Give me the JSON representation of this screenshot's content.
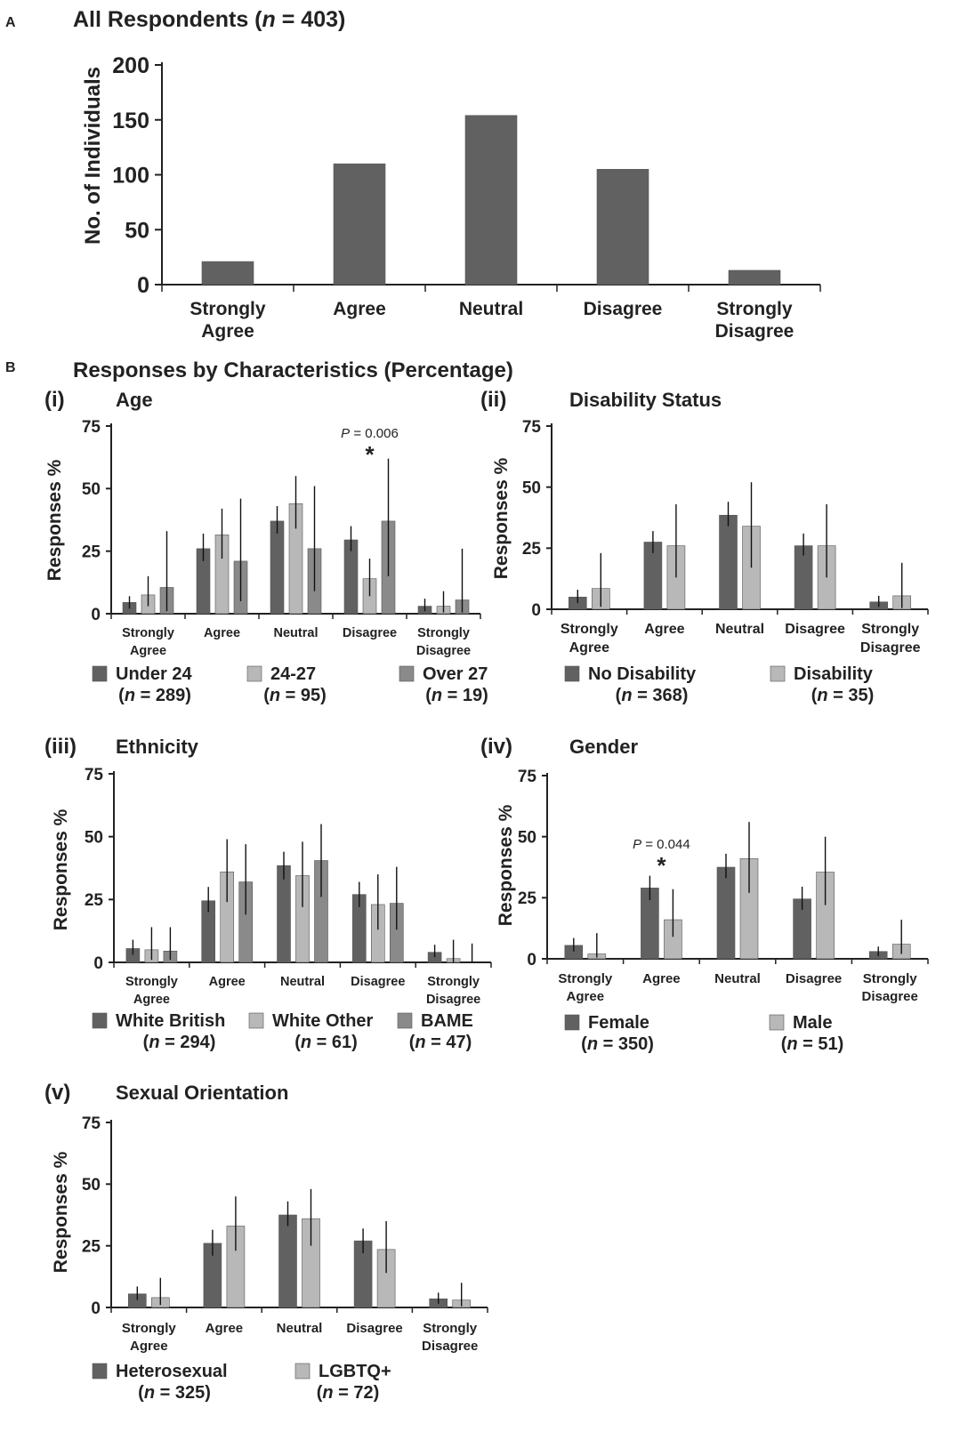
{
  "figure": {
    "panel_a_letter": "A",
    "panel_b_letter": "B",
    "panel_b_title": "Responses by Characteristics (Percentage)"
  },
  "chart_data": [
    {
      "id": "A",
      "type": "bar",
      "title_prefix": "All Respondents (",
      "title_n_italic": "n",
      "title_suffix": " = 403)",
      "ylabel": "No. of Individuals",
      "ylim": [
        0,
        200
      ],
      "yticks": [
        0,
        50,
        100,
        150,
        200
      ],
      "categories": [
        [
          "Strongly",
          "Agree"
        ],
        [
          "Agree"
        ],
        [
          "Neutral"
        ],
        [
          "Disagree"
        ],
        [
          "Strongly",
          "Disagree"
        ]
      ],
      "series": [
        {
          "name": "All Respondents",
          "color": "#616161",
          "values": [
            21,
            110,
            154,
            105,
            13
          ]
        }
      ]
    },
    {
      "id": "B-i",
      "type": "bar",
      "label": "(i)",
      "title": "Age",
      "ylabel": "Responses %",
      "ylim": [
        0,
        75
      ],
      "yticks": [
        0,
        25,
        50,
        75
      ],
      "categories": [
        [
          "Strongly",
          "Agree"
        ],
        [
          "Agree"
        ],
        [
          "Neutral"
        ],
        [
          "Disagree"
        ],
        [
          "Strongly",
          "Disagree"
        ]
      ],
      "series": [
        {
          "name": "Under 24",
          "n": "289",
          "color": "#616161",
          "values": [
            4.5,
            26,
            37,
            29.5,
            3
          ],
          "err_low": [
            2,
            21,
            32,
            25,
            1
          ],
          "err_high": [
            7,
            32,
            43,
            35,
            6
          ]
        },
        {
          "name": "24-27",
          "n": "95",
          "color": "#b8b8b8",
          "values": [
            7.5,
            31.5,
            44,
            14,
            3
          ],
          "err_low": [
            3,
            22,
            34,
            7,
            0.5
          ],
          "err_high": [
            15,
            42,
            55,
            22,
            9
          ]
        },
        {
          "name": "Over 27",
          "n": "19",
          "color": "#8a8a8a",
          "values": [
            10.5,
            21,
            26,
            37,
            5.5
          ],
          "err_low": [
            1,
            5,
            9,
            15,
            0.5
          ],
          "err_high": [
            33,
            46,
            51,
            62,
            26
          ]
        }
      ],
      "annotations": [
        {
          "category_index": 3,
          "p_label": "P",
          "p_value": " = 0.006",
          "marker": "*"
        }
      ]
    },
    {
      "id": "B-ii",
      "type": "bar",
      "label": "(ii)",
      "title": "Disability Status",
      "ylabel": "Responses %",
      "ylim": [
        0,
        75
      ],
      "yticks": [
        0,
        25,
        50,
        75
      ],
      "categories": [
        [
          "Strongly",
          "Agree"
        ],
        [
          "Agree"
        ],
        [
          "Neutral"
        ],
        [
          "Disagree"
        ],
        [
          "Strongly",
          "Disagree"
        ]
      ],
      "series": [
        {
          "name": "No Disability",
          "n": "368",
          "color": "#616161",
          "values": [
            5,
            27.5,
            38.5,
            26,
            3
          ],
          "err_low": [
            2.5,
            23,
            34,
            22,
            1
          ],
          "err_high": [
            8,
            32,
            44,
            31,
            5.5
          ]
        },
        {
          "name": "Disability",
          "n": "35",
          "color": "#b8b8b8",
          "values": [
            8.5,
            26,
            34,
            26,
            5.5
          ],
          "err_low": [
            1,
            13,
            17,
            13,
            0.5
          ],
          "err_high": [
            23,
            43,
            52,
            43,
            19
          ]
        }
      ]
    },
    {
      "id": "B-iii",
      "type": "bar",
      "label": "(iii)",
      "title": "Ethnicity",
      "ylabel": "Responses %",
      "ylim": [
        0,
        75
      ],
      "yticks": [
        0,
        25,
        50,
        75
      ],
      "categories": [
        [
          "Strongly",
          "Agree"
        ],
        [
          "Agree"
        ],
        [
          "Neutral"
        ],
        [
          "Disagree"
        ],
        [
          "Strongly",
          "Disagree"
        ]
      ],
      "series": [
        {
          "name": "White British",
          "n": "294",
          "color": "#616161",
          "values": [
            5.5,
            24.5,
            38.5,
            27,
            4
          ],
          "err_low": [
            3,
            20,
            33,
            22,
            2
          ],
          "err_high": [
            9,
            30,
            44,
            32,
            7
          ]
        },
        {
          "name": "White Other",
          "n": "61",
          "color": "#b8b8b8",
          "values": [
            5,
            36,
            34.5,
            23,
            1.5
          ],
          "err_low": [
            1,
            24,
            22,
            13,
            0
          ],
          "err_high": [
            14,
            49,
            48,
            35,
            9
          ]
        },
        {
          "name": "BAME",
          "n": "47",
          "color": "#8a8a8a",
          "values": [
            4.5,
            32,
            40.5,
            23.5,
            0
          ],
          "err_low": [
            1,
            19,
            26,
            13,
            0
          ],
          "err_high": [
            14,
            47,
            55,
            38,
            7.5
          ]
        }
      ]
    },
    {
      "id": "B-iv",
      "type": "bar",
      "label": "(iv)",
      "title": "Gender",
      "ylabel": "Responses %",
      "ylim": [
        0,
        75
      ],
      "yticks": [
        0,
        25,
        50,
        75
      ],
      "categories": [
        [
          "Strongly",
          "Agree"
        ],
        [
          "Agree"
        ],
        [
          "Neutral"
        ],
        [
          "Disagree"
        ],
        [
          "Strongly",
          "Disagree"
        ]
      ],
      "series": [
        {
          "name": "Female",
          "n": "350",
          "color": "#616161",
          "values": [
            5.5,
            29,
            37.5,
            24.5,
            3
          ],
          "err_low": [
            3,
            24,
            33,
            20,
            1
          ],
          "err_high": [
            8.5,
            34,
            43,
            29.5,
            5
          ]
        },
        {
          "name": "Male",
          "n": "51",
          "color": "#b8b8b8",
          "values": [
            2,
            16,
            41,
            35.5,
            6
          ],
          "err_low": [
            0.5,
            9,
            27,
            22,
            2
          ],
          "err_high": [
            10.5,
            28.5,
            56,
            50,
            16
          ]
        }
      ],
      "annotations": [
        {
          "category_index": 1,
          "p_label": "P",
          "p_value": " = 0.044",
          "marker": "*"
        }
      ]
    },
    {
      "id": "B-v",
      "type": "bar",
      "label": "(v)",
      "title": "Sexual Orientation",
      "ylabel": "Responses %",
      "ylim": [
        0,
        75
      ],
      "yticks": [
        0,
        25,
        50,
        75
      ],
      "categories": [
        [
          "Strongly",
          "Agree"
        ],
        [
          "Agree"
        ],
        [
          "Neutral"
        ],
        [
          "Disagree"
        ],
        [
          "Strongly",
          "Disagree"
        ]
      ],
      "series": [
        {
          "name": "Heterosexual",
          "n": "325",
          "color": "#616161",
          "values": [
            5.5,
            26,
            37.5,
            27,
            3.5
          ],
          "err_low": [
            3,
            21,
            33,
            22,
            1.5
          ],
          "err_high": [
            8.5,
            31.5,
            43,
            32,
            6
          ]
        },
        {
          "name": "LGBTQ+",
          "n": "72",
          "color": "#b8b8b8",
          "values": [
            4,
            33,
            36,
            23.5,
            3
          ],
          "err_low": [
            1,
            23,
            25,
            14,
            0.5
          ],
          "err_high": [
            12,
            45,
            48,
            35,
            10
          ]
        }
      ]
    }
  ]
}
